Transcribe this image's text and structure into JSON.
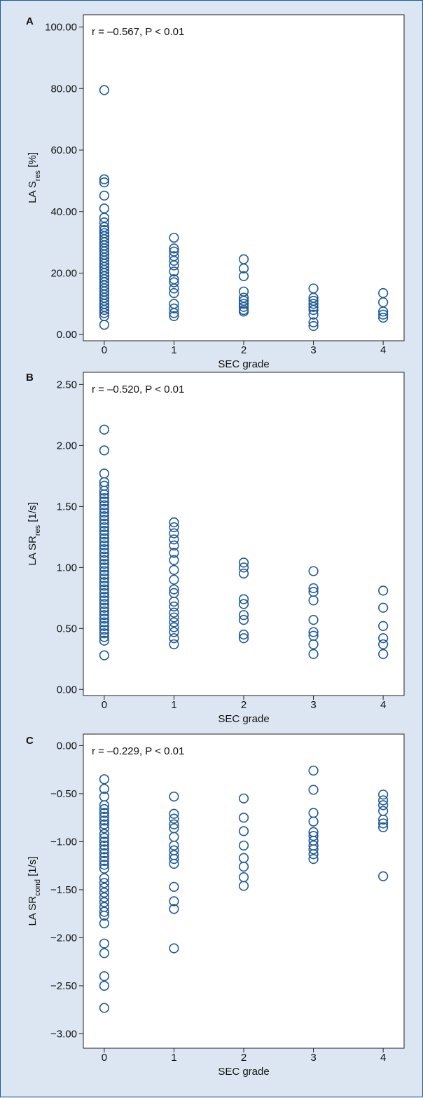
{
  "chart_data": [
    {
      "type": "scatter",
      "panel": "A",
      "annotation": "r = –0.567, P < 0.01",
      "xlabel": "SEC grade",
      "ylabel": {
        "main": "LA S",
        "sub": "res",
        "unit": " [%]"
      },
      "xticks": [
        "0",
        "1",
        "2",
        "3",
        "4"
      ],
      "yticks": [
        {
          "value": 0,
          "label": "0.00"
        },
        {
          "value": 20,
          "label": "20.00"
        },
        {
          "value": 40,
          "label": "40.00"
        },
        {
          "value": 60,
          "label": "60.00"
        },
        {
          "value": 80,
          "label": "80.00"
        },
        {
          "value": 100,
          "label": "100.00"
        }
      ],
      "ylim": [
        -2,
        104
      ],
      "xlim": [
        -0.3,
        4.3
      ],
      "marker_color": "#1f5a96",
      "series": [
        {
          "x": 0,
          "values": [
            79.5,
            50.5,
            49.5,
            45.2,
            41.0,
            38.0,
            36.5,
            35.0,
            34.0,
            33.0,
            32.0,
            31.0,
            30.0,
            29.0,
            28.0,
            27.0,
            26.0,
            25.0,
            24.0,
            23.0,
            22.0,
            21.0,
            20.0,
            19.0,
            18.0,
            17.0,
            16.0,
            15.0,
            14.0,
            13.0,
            12.0,
            11.0,
            10.0,
            9.0,
            8.0,
            7.0,
            6.0,
            3.2
          ]
        },
        {
          "x": 1,
          "values": [
            31.5,
            28.0,
            27.0,
            25.5,
            24.0,
            22.5,
            20.5,
            18.0,
            17.0,
            15.0,
            13.5,
            10.0,
            8.5,
            7.0,
            6.0
          ]
        },
        {
          "x": 2,
          "values": [
            24.5,
            21.5,
            19.0,
            14.0,
            12.0,
            11.0,
            10.0,
            9.0,
            8.0,
            7.5
          ]
        },
        {
          "x": 3,
          "values": [
            15.0,
            12.0,
            11.0,
            10.0,
            9.0,
            8.0,
            6.5,
            4.0,
            2.8
          ]
        },
        {
          "x": 4,
          "values": [
            13.5,
            10.5,
            7.5,
            6.5,
            5.5
          ]
        }
      ]
    },
    {
      "type": "scatter",
      "panel": "B",
      "annotation": "r = –0.520, P < 0.01",
      "xlabel": "SEC grade",
      "ylabel": {
        "main": "LA SR",
        "sub": "res",
        "unit": " [1/s]"
      },
      "xticks": [
        "0",
        "1",
        "2",
        "3",
        "4"
      ],
      "yticks": [
        {
          "value": 0,
          "label": "0.00"
        },
        {
          "value": 0.5,
          "label": "0.50"
        },
        {
          "value": 1.0,
          "label": "1.00"
        },
        {
          "value": 1.5,
          "label": "1.50"
        },
        {
          "value": 2.0,
          "label": "2.00"
        },
        {
          "value": 2.5,
          "label": "2.50"
        }
      ],
      "ylim": [
        -0.05,
        2.6
      ],
      "xlim": [
        -0.3,
        4.3
      ],
      "marker_color": "#1f5a96",
      "series": [
        {
          "x": 0,
          "values": [
            2.13,
            1.96,
            1.77,
            1.7,
            1.67,
            1.63,
            1.6,
            1.57,
            1.54,
            1.51,
            1.48,
            1.45,
            1.42,
            1.39,
            1.36,
            1.33,
            1.3,
            1.27,
            1.24,
            1.21,
            1.18,
            1.15,
            1.12,
            1.09,
            1.06,
            1.03,
            1.0,
            0.97,
            0.94,
            0.91,
            0.88,
            0.85,
            0.82,
            0.79,
            0.76,
            0.73,
            0.7,
            0.67,
            0.64,
            0.61,
            0.58,
            0.55,
            0.52,
            0.49,
            0.46,
            0.43,
            0.4,
            0.28
          ]
        },
        {
          "x": 1,
          "values": [
            1.37,
            1.33,
            1.28,
            1.23,
            1.18,
            1.12,
            1.06,
            0.98,
            0.9,
            0.82,
            0.79,
            0.72,
            0.68,
            0.63,
            0.59,
            0.55,
            0.51,
            0.47,
            0.42,
            0.37
          ]
        },
        {
          "x": 2,
          "values": [
            1.04,
            1.0,
            0.95,
            0.74,
            0.7,
            0.61,
            0.57,
            0.45,
            0.42
          ]
        },
        {
          "x": 3,
          "values": [
            0.97,
            0.83,
            0.8,
            0.73,
            0.57,
            0.47,
            0.44,
            0.37,
            0.29
          ]
        },
        {
          "x": 4,
          "values": [
            0.81,
            0.67,
            0.52,
            0.42,
            0.37,
            0.29
          ]
        }
      ]
    },
    {
      "type": "scatter",
      "panel": "C",
      "annotation": "r = –0.229, P < 0.01",
      "xlabel": "SEC grade",
      "ylabel": {
        "main": "LA SR",
        "sub": "cond",
        "unit": " [1/s]"
      },
      "xticks": [
        "0",
        "1",
        "2",
        "3",
        "4"
      ],
      "yticks": [
        {
          "value": 0,
          "label": "0.00"
        },
        {
          "value": -0.5,
          "label": "−0.50"
        },
        {
          "value": -1.0,
          "label": "−1.00"
        },
        {
          "value": -1.5,
          "label": "−1.50"
        },
        {
          "value": -2.0,
          "label": "−2.00"
        },
        {
          "value": -2.5,
          "label": "−2.50"
        },
        {
          "value": -3.0,
          "label": "−3.00"
        }
      ],
      "ylim": [
        -3.15,
        0.12
      ],
      "xlim": [
        -0.3,
        4.3
      ],
      "marker_color": "#1f5a96",
      "series": [
        {
          "x": 0,
          "values": [
            -0.35,
            -0.45,
            -0.53,
            -0.62,
            -0.66,
            -0.7,
            -0.74,
            -0.78,
            -0.82,
            -0.86,
            -0.92,
            -0.96,
            -1.0,
            -1.04,
            -1.08,
            -1.12,
            -1.16,
            -1.2,
            -1.24,
            -1.28,
            -1.38,
            -1.43,
            -1.48,
            -1.53,
            -1.58,
            -1.63,
            -1.68,
            -1.73,
            -1.77,
            -1.85,
            -2.06,
            -2.16,
            -2.4,
            -2.5,
            -2.73
          ]
        },
        {
          "x": 1,
          "values": [
            -0.53,
            -0.71,
            -0.76,
            -0.82,
            -0.86,
            -0.95,
            -1.04,
            -1.09,
            -1.14,
            -1.18,
            -1.23,
            -1.47,
            -1.62,
            -1.7,
            -2.11
          ]
        },
        {
          "x": 2,
          "values": [
            -0.55,
            -0.75,
            -0.89,
            -1.04,
            -1.17,
            -1.26,
            -1.37,
            -1.46
          ]
        },
        {
          "x": 3,
          "values": [
            -0.26,
            -0.46,
            -0.7,
            -0.79,
            -0.9,
            -0.94,
            -0.99,
            -1.04,
            -1.08,
            -1.13,
            -1.18
          ]
        },
        {
          "x": 4,
          "values": [
            -0.51,
            -0.57,
            -0.62,
            -0.68,
            -0.77,
            -0.81,
            -0.85,
            -1.36
          ]
        }
      ]
    }
  ]
}
